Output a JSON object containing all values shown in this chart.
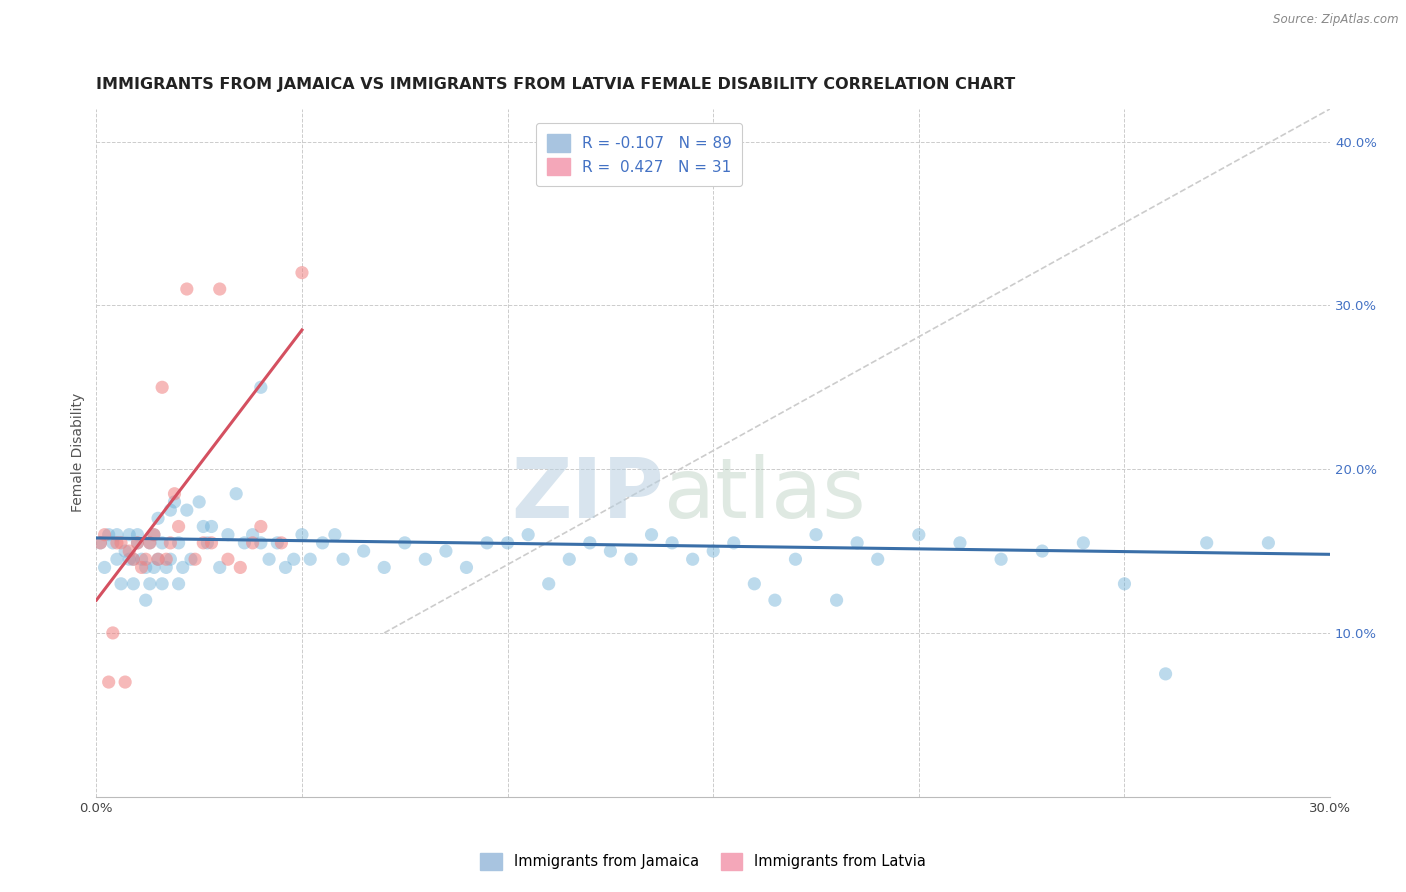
{
  "title": "IMMIGRANTS FROM JAMAICA VS IMMIGRANTS FROM LATVIA FEMALE DISABILITY CORRELATION CHART",
  "source": "Source: ZipAtlas.com",
  "ylabel": "Female Disability",
  "xlim": [
    0.0,
    0.3
  ],
  "ylim": [
    0.0,
    0.42
  ],
  "background_color": "#ffffff",
  "grid_color": "#cccccc",
  "jamaica_color": "#6baed6",
  "latvia_color": "#f08080",
  "jamaica_trendline_color": "#3a6fa8",
  "latvia_trendline_color": "#d45060",
  "diagonal_color": "#cccccc",
  "jamaica_alpha": 0.45,
  "latvia_alpha": 0.55,
  "scatter_size": 90,
  "jamaica_R": "-0.107",
  "jamaica_N": "89",
  "latvia_R": "0.427",
  "latvia_N": "31",
  "watermark_zip": "ZIP",
  "watermark_atlas": "atlas",
  "title_fontsize": 11.5,
  "axis_label_fontsize": 10,
  "tick_fontsize": 9.5,
  "jamaica_scatter_x": [
    0.001,
    0.002,
    0.003,
    0.004,
    0.005,
    0.005,
    0.006,
    0.007,
    0.008,
    0.008,
    0.009,
    0.009,
    0.01,
    0.01,
    0.011,
    0.012,
    0.012,
    0.013,
    0.013,
    0.014,
    0.014,
    0.015,
    0.015,
    0.016,
    0.016,
    0.017,
    0.018,
    0.018,
    0.019,
    0.02,
    0.02,
    0.021,
    0.022,
    0.023,
    0.025,
    0.026,
    0.027,
    0.028,
    0.03,
    0.032,
    0.034,
    0.036,
    0.038,
    0.04,
    0.042,
    0.044,
    0.046,
    0.048,
    0.05,
    0.052,
    0.055,
    0.058,
    0.06,
    0.065,
    0.07,
    0.075,
    0.08,
    0.085,
    0.09,
    0.095,
    0.1,
    0.105,
    0.11,
    0.115,
    0.12,
    0.125,
    0.13,
    0.135,
    0.14,
    0.145,
    0.15,
    0.155,
    0.16,
    0.165,
    0.17,
    0.175,
    0.18,
    0.185,
    0.19,
    0.2,
    0.21,
    0.22,
    0.23,
    0.24,
    0.25,
    0.26,
    0.27,
    0.285,
    0.04
  ],
  "jamaica_scatter_y": [
    0.155,
    0.14,
    0.16,
    0.155,
    0.145,
    0.16,
    0.13,
    0.15,
    0.145,
    0.16,
    0.13,
    0.145,
    0.155,
    0.16,
    0.145,
    0.12,
    0.14,
    0.13,
    0.155,
    0.14,
    0.16,
    0.145,
    0.17,
    0.13,
    0.155,
    0.14,
    0.175,
    0.145,
    0.18,
    0.13,
    0.155,
    0.14,
    0.175,
    0.145,
    0.18,
    0.165,
    0.155,
    0.165,
    0.14,
    0.16,
    0.185,
    0.155,
    0.16,
    0.155,
    0.145,
    0.155,
    0.14,
    0.145,
    0.16,
    0.145,
    0.155,
    0.16,
    0.145,
    0.15,
    0.14,
    0.155,
    0.145,
    0.15,
    0.14,
    0.155,
    0.155,
    0.16,
    0.13,
    0.145,
    0.155,
    0.15,
    0.145,
    0.16,
    0.155,
    0.145,
    0.15,
    0.155,
    0.13,
    0.12,
    0.145,
    0.16,
    0.12,
    0.155,
    0.145,
    0.16,
    0.155,
    0.145,
    0.15,
    0.155,
    0.13,
    0.075,
    0.155,
    0.155,
    0.25
  ],
  "latvia_scatter_x": [
    0.001,
    0.002,
    0.003,
    0.004,
    0.005,
    0.006,
    0.007,
    0.008,
    0.009,
    0.01,
    0.011,
    0.012,
    0.013,
    0.014,
    0.015,
    0.016,
    0.017,
    0.018,
    0.019,
    0.02,
    0.022,
    0.024,
    0.026,
    0.028,
    0.03,
    0.032,
    0.035,
    0.038,
    0.04,
    0.045,
    0.05
  ],
  "latvia_scatter_y": [
    0.155,
    0.16,
    0.07,
    0.1,
    0.155,
    0.155,
    0.07,
    0.15,
    0.145,
    0.155,
    0.14,
    0.145,
    0.155,
    0.16,
    0.145,
    0.25,
    0.145,
    0.155,
    0.185,
    0.165,
    0.31,
    0.145,
    0.155,
    0.155,
    0.31,
    0.145,
    0.14,
    0.155,
    0.165,
    0.155,
    0.32
  ],
  "jamaica_trendline_x": [
    0.0,
    0.3
  ],
  "jamaica_trendline_y": [
    0.158,
    0.148
  ],
  "latvia_trendline_x": [
    0.0,
    0.05
  ],
  "latvia_trendline_y": [
    0.12,
    0.285
  ],
  "diagonal_line_x": [
    0.07,
    0.3
  ],
  "diagonal_line_y": [
    0.1,
    0.42
  ]
}
